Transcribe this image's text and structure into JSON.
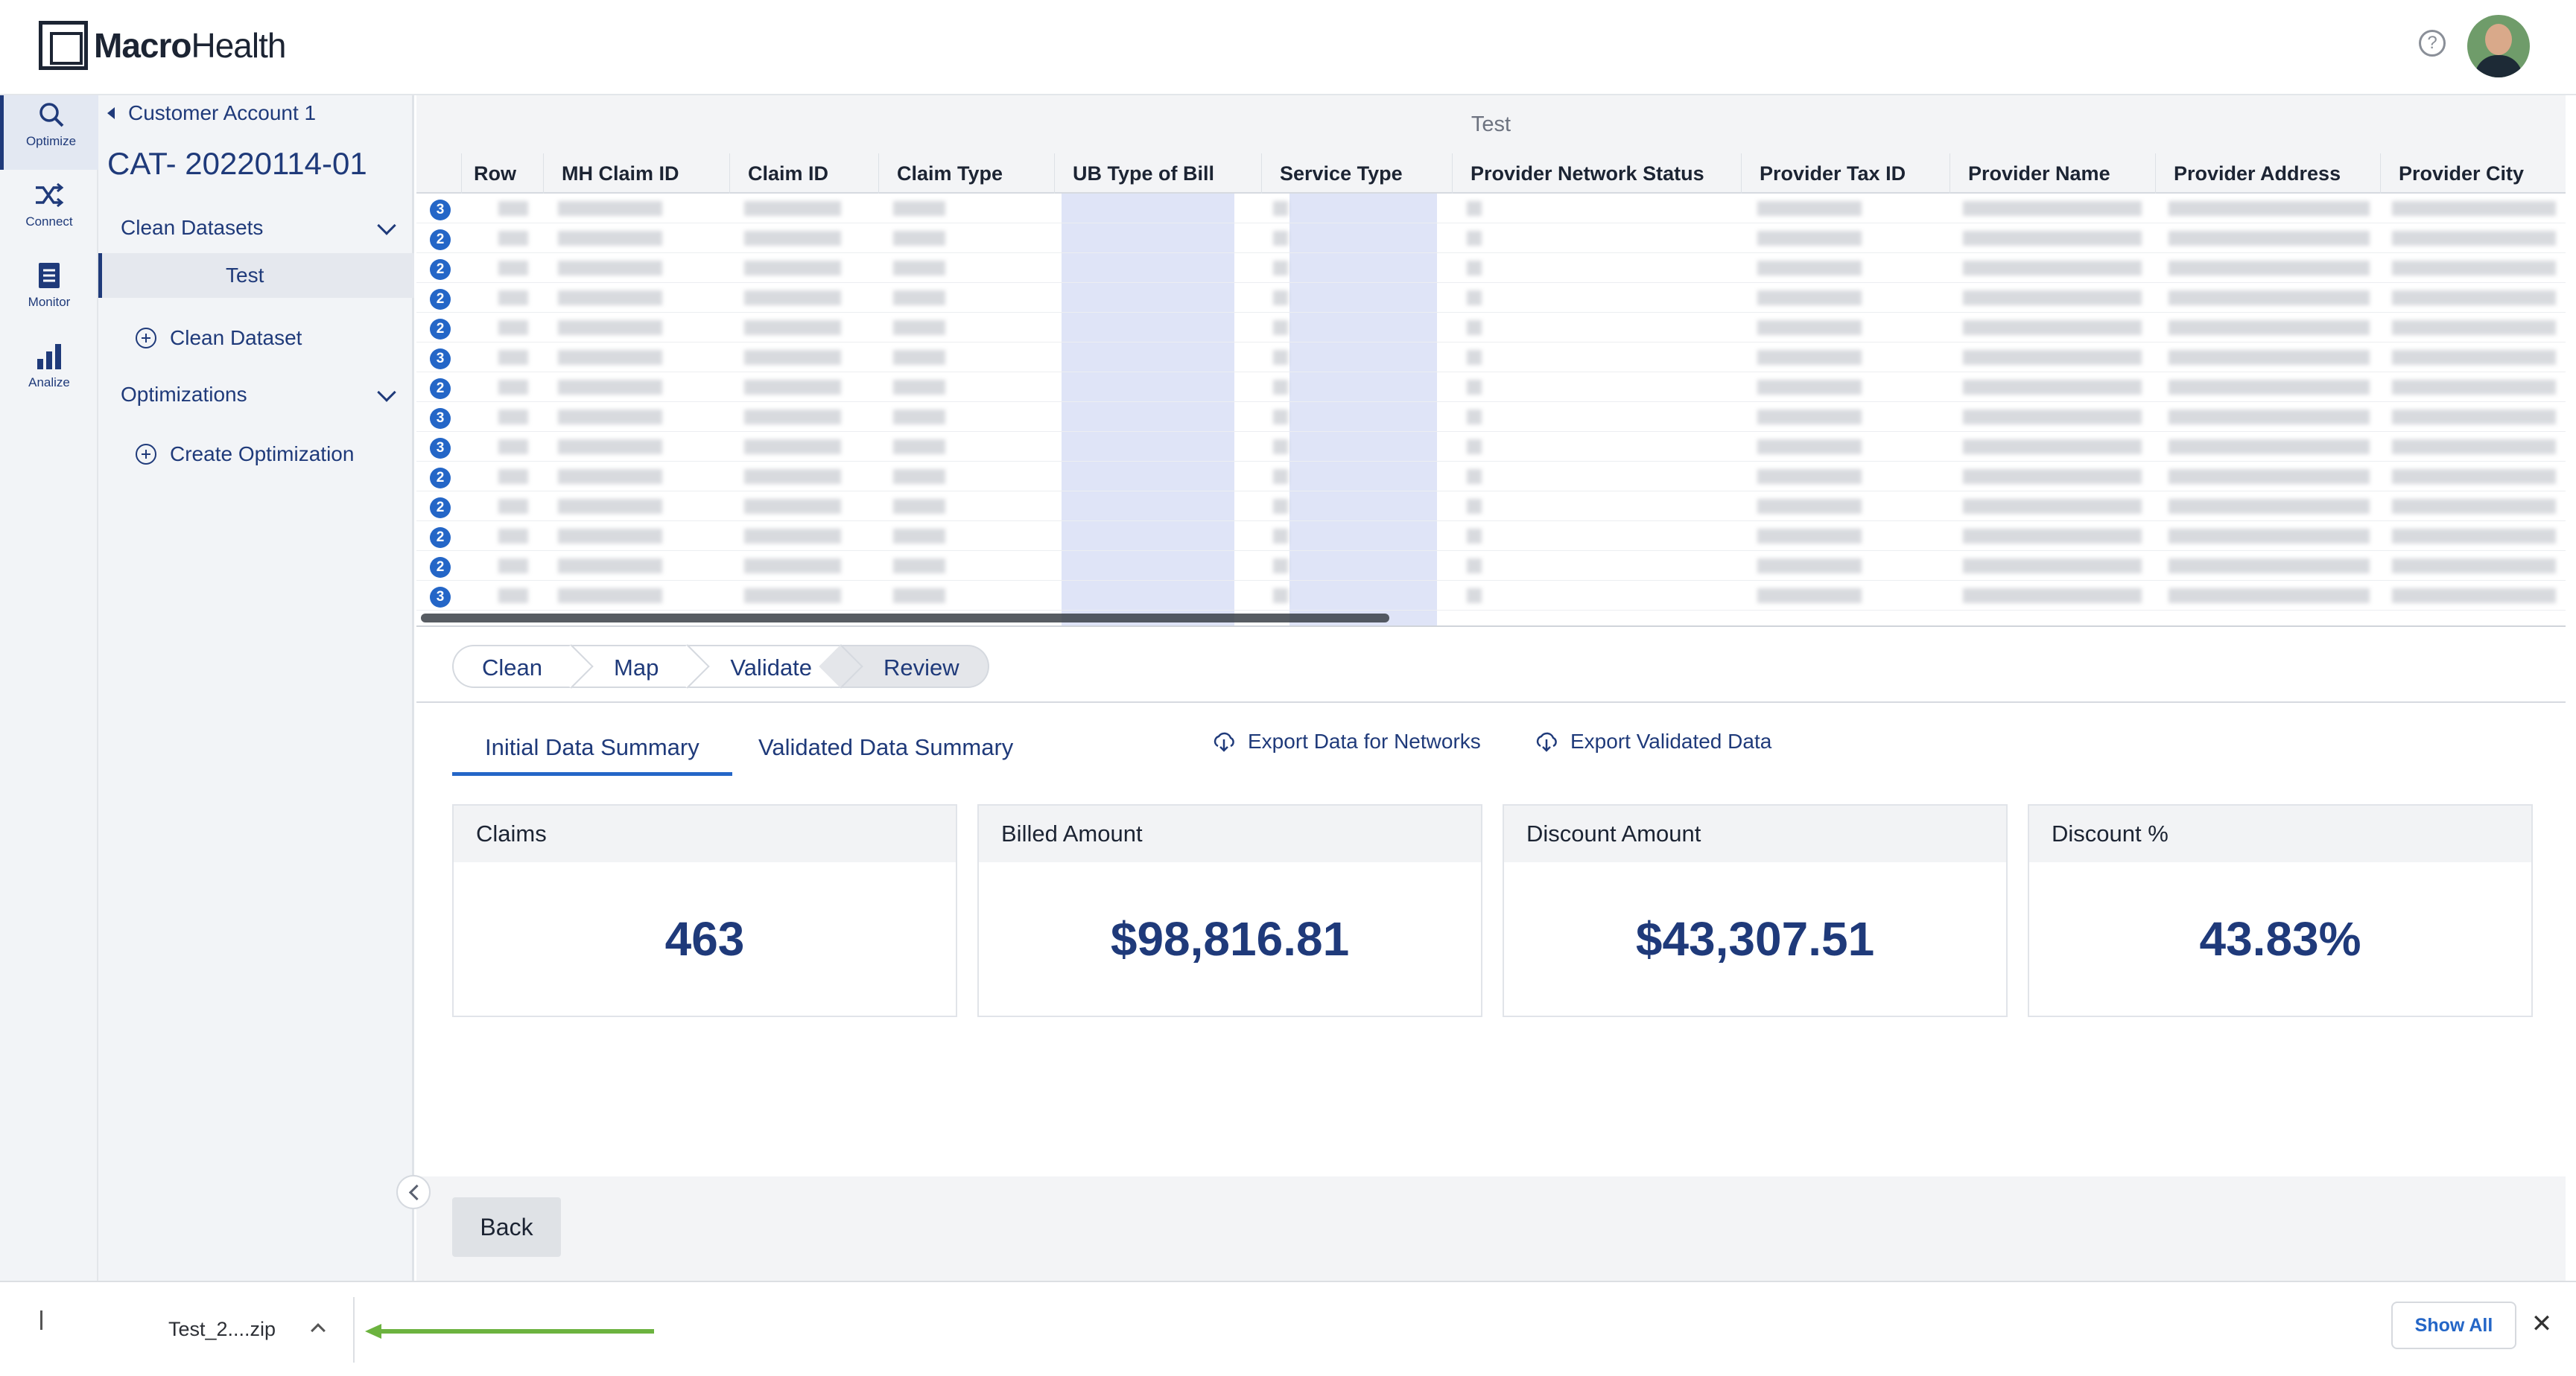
{
  "header": {
    "logo_bold": "Macro",
    "logo_light": "Health",
    "help": "?"
  },
  "rail": [
    {
      "label": "Optimize",
      "icon": "search-icon"
    },
    {
      "label": "Connect",
      "icon": "shuffle-icon"
    },
    {
      "label": "Monitor",
      "icon": "document-icon"
    },
    {
      "label": "Analize",
      "icon": "bar-chart-icon"
    }
  ],
  "nav": {
    "back_label": "Customer Account 1",
    "title": "CAT- 20220114-01",
    "clean_datasets": "Clean Datasets",
    "dataset_item": "Test",
    "add_dataset": "Clean Dataset",
    "optimizations": "Optimizations",
    "add_optimization": "Create Optimization"
  },
  "grid": {
    "title": "Test",
    "columns": [
      "Row",
      "MH Claim ID",
      "Claim ID",
      "Claim Type",
      "UB Type of Bill",
      "Service Type",
      "Provider Network Status",
      "Provider Tax ID",
      "Provider Name",
      "Provider Address",
      "Provider City"
    ],
    "badges": [
      "3",
      "2",
      "2",
      "2",
      "2",
      "3",
      "2",
      "3",
      "3",
      "2",
      "2",
      "2",
      "2",
      "3"
    ]
  },
  "stepper": [
    "Clean",
    "Map",
    "Validate",
    "Review"
  ],
  "tabs": {
    "initial": "Initial Data Summary",
    "validated": "Validated Data Summary"
  },
  "exports": {
    "networks": "Export Data for Networks",
    "validated": "Export Validated Data"
  },
  "cards": [
    {
      "label": "Claims",
      "value": "463"
    },
    {
      "label": "Billed Amount",
      "value": "$98,816.81"
    },
    {
      "label": "Discount Amount",
      "value": "$43,307.51"
    },
    {
      "label": "Discount %",
      "value": "43.83%"
    }
  ],
  "back_button": "Back",
  "downloads": {
    "file_name": "Test_2....zip",
    "show_all": "Show All",
    "close": "✕"
  },
  "colors": {
    "brand": "#1f3a7a",
    "accent": "#2466c7",
    "arrow": "#6cb33f"
  }
}
